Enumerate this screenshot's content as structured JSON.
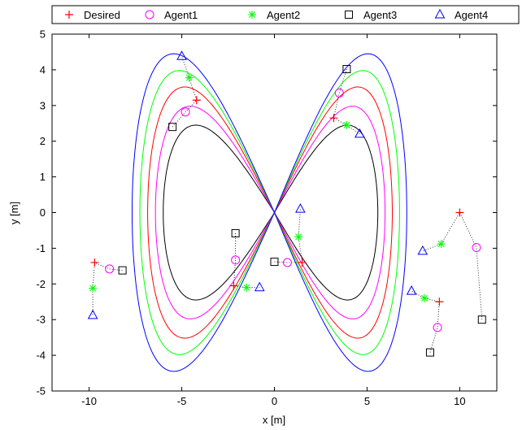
{
  "chart_data": {
    "type": "line",
    "title": "",
    "xlabel": "x [m]",
    "ylabel": "y [m]",
    "xlim": [
      -12,
      12
    ],
    "ylim": [
      -5,
      5
    ],
    "xticks": [
      -10,
      -5,
      0,
      5,
      10
    ],
    "yticks": [
      -5,
      -4,
      -3,
      -2,
      -1,
      0,
      1,
      2,
      3,
      4,
      5
    ],
    "grid": false,
    "legend_position": "top, horizontal",
    "curves": {
      "description": "Lemniscate of Gerono-like figure-eight; center offset (0, 0); x amplitude 6; y amplitude 2.5 for black path, increasing outward",
      "black": {
        "color": "#000000",
        "x_center": 6,
        "x_amp": 6,
        "y_amp": 2.45
      },
      "magenta": {
        "color": "#ff00ff",
        "x_amp": 6,
        "y_amp": 2.98
      },
      "red": {
        "color": "#ff0000",
        "x_amp": 6,
        "y_amp": 3.52
      },
      "green": {
        "color": "#00ff00",
        "x_amp": 6,
        "y_amp": 3.98
      },
      "blue": {
        "color": "#0000ff",
        "x_amp": 6,
        "y_amp": 4.45
      }
    },
    "series": [
      {
        "name": "Desired",
        "color": "#ff0000",
        "marker": "plus",
        "points": [
          [
            -4.2,
            3.15
          ],
          [
            -9.7,
            -1.4
          ],
          [
            -2.2,
            -2.05
          ],
          [
            1.5,
            -1.4
          ],
          [
            3.2,
            2.65
          ],
          [
            8.9,
            -2.5
          ],
          [
            10.0,
            0.0
          ]
        ]
      },
      {
        "name": "Agent1",
        "color": "#ff00ff",
        "marker": "circle",
        "points": [
          [
            -4.8,
            2.82
          ],
          [
            -8.9,
            -1.58
          ],
          [
            -2.1,
            -1.33
          ],
          [
            0.7,
            -1.4
          ],
          [
            3.5,
            3.35
          ],
          [
            8.8,
            -3.22
          ],
          [
            10.9,
            -0.98
          ]
        ]
      },
      {
        "name": "Agent2",
        "color": "#00ff00",
        "marker": "asterisk",
        "points": [
          [
            -4.6,
            3.78
          ],
          [
            -9.8,
            -2.12
          ],
          [
            -1.5,
            -2.1
          ],
          [
            1.3,
            -0.68
          ],
          [
            3.9,
            2.45
          ],
          [
            8.1,
            -2.4
          ],
          [
            9.0,
            -0.88
          ]
        ]
      },
      {
        "name": "Agent3",
        "color": "#000000",
        "marker": "square",
        "points": [
          [
            -5.5,
            2.4
          ],
          [
            -8.2,
            -1.62
          ],
          [
            -2.1,
            -0.58
          ],
          [
            0.0,
            -1.38
          ],
          [
            3.9,
            4.02
          ],
          [
            8.4,
            -3.92
          ],
          [
            11.2,
            -3.0
          ]
        ]
      },
      {
        "name": "Agent4",
        "color": "#0000ff",
        "marker": "triangle",
        "points": [
          [
            -5.0,
            4.38
          ],
          [
            -9.8,
            -2.88
          ],
          [
            -0.8,
            -2.1
          ],
          [
            1.4,
            0.1
          ],
          [
            4.6,
            2.2
          ],
          [
            7.4,
            -2.2
          ],
          [
            8.0,
            -1.08
          ]
        ]
      }
    ],
    "dotted_links": [
      [
        [
          -5.5,
          2.4
        ],
        [
          -4.8,
          2.82
        ],
        [
          -4.2,
          3.15
        ],
        [
          -4.6,
          3.78
        ],
        [
          -5.0,
          4.38
        ]
      ],
      [
        [
          -8.2,
          -1.62
        ],
        [
          -8.9,
          -1.58
        ],
        [
          -9.7,
          -1.4
        ],
        [
          -9.8,
          -2.12
        ],
        [
          -9.8,
          -2.88
        ]
      ],
      [
        [
          -2.1,
          -0.58
        ],
        [
          -2.1,
          -1.33
        ],
        [
          -2.2,
          -2.05
        ],
        [
          -1.5,
          -2.1
        ],
        [
          -0.8,
          -2.1
        ]
      ],
      [
        [
          0.0,
          -1.38
        ],
        [
          0.7,
          -1.4
        ],
        [
          1.5,
          -1.4
        ],
        [
          1.3,
          -0.68
        ],
        [
          1.4,
          0.1
        ]
      ],
      [
        [
          3.9,
          4.02
        ],
        [
          3.5,
          3.35
        ],
        [
          3.2,
          2.65
        ],
        [
          3.9,
          2.45
        ],
        [
          4.6,
          2.2
        ]
      ],
      [
        [
          8.4,
          -3.92
        ],
        [
          8.8,
          -3.22
        ],
        [
          8.9,
          -2.5
        ],
        [
          8.1,
          -2.4
        ],
        [
          7.4,
          -2.2
        ]
      ],
      [
        [
          11.2,
          -3.0
        ],
        [
          10.9,
          -0.98
        ],
        [
          10.0,
          0.0
        ],
        [
          9.0,
          -0.88
        ],
        [
          8.0,
          -1.08
        ]
      ]
    ]
  }
}
